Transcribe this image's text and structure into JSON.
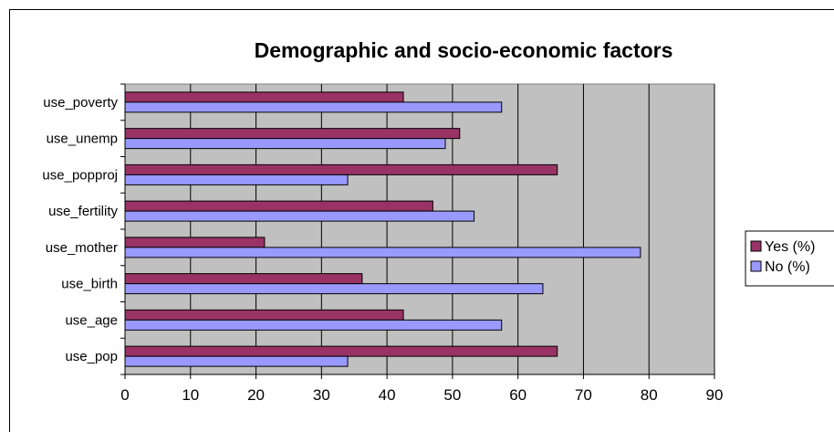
{
  "chart_data": {
    "type": "bar",
    "orientation": "horizontal",
    "title": "Demographic and socio-economic factors",
    "xlabel": "",
    "ylabel": "",
    "categories": [
      "use_pop",
      "use_age",
      "use_birth",
      "use_mother",
      "use_fertility",
      "use_popproj",
      "use_unemp",
      "use_poverty"
    ],
    "series": [
      {
        "name": "Yes (%)",
        "color": "#993366",
        "values": [
          66,
          42.5,
          36.2,
          21.3,
          47,
          66,
          51.1,
          42.5
        ]
      },
      {
        "name": "No (%)",
        "color": "#9999ff",
        "values": [
          34,
          57.5,
          63.8,
          78.7,
          53.3,
          34,
          48.9,
          57.5
        ]
      }
    ],
    "xlim": [
      0,
      90
    ],
    "xticks": [
      0,
      10,
      20,
      30,
      40,
      50,
      60,
      70,
      80,
      90
    ],
    "plot_background": "#c0c0c0",
    "grid": "vertical",
    "legend_position": "right"
  }
}
